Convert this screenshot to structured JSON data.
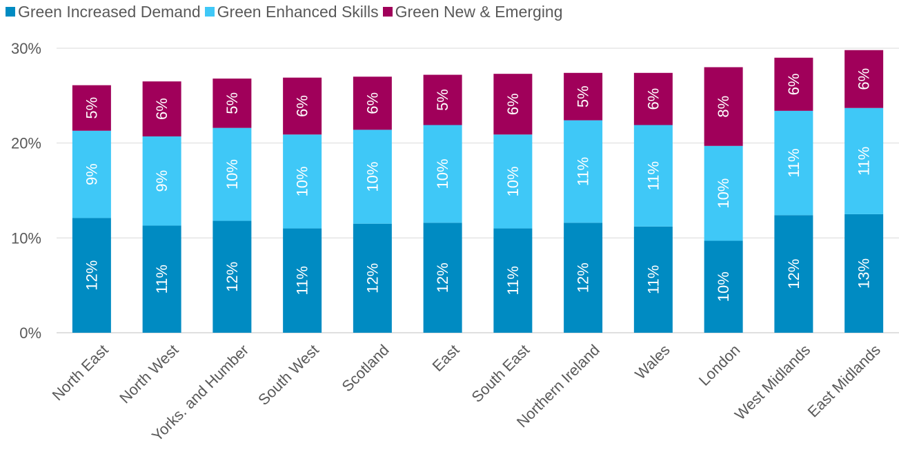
{
  "chart_data": {
    "type": "bar",
    "stacked": true,
    "orientation": "vertical",
    "categories": [
      "North East",
      "North West",
      "Yorks. and Humber",
      "South West",
      "Scotland",
      "East",
      "South East",
      "Northern Ireland",
      "Wales",
      "London",
      "West Midlands",
      "East Midlands"
    ],
    "series": [
      {
        "name": "Green Increased Demand",
        "color": "#008bc2",
        "values": [
          12.1,
          11.3,
          11.8,
          11.0,
          11.5,
          11.6,
          11.0,
          11.6,
          11.2,
          9.7,
          12.4,
          12.5
        ],
        "labels": [
          "12%",
          "11%",
          "12%",
          "11%",
          "12%",
          "12%",
          "11%",
          "12%",
          "11%",
          "10%",
          "12%",
          "13%"
        ]
      },
      {
        "name": "Green Enhanced Skills",
        "color": "#3fc8f7",
        "values": [
          9.2,
          9.4,
          9.8,
          9.9,
          9.9,
          10.3,
          9.9,
          10.8,
          10.7,
          10.0,
          11.0,
          11.2
        ],
        "labels": [
          "9%",
          "9%",
          "10%",
          "10%",
          "10%",
          "10%",
          "10%",
          "11%",
          "11%",
          "10%",
          "11%",
          "11%"
        ]
      },
      {
        "name": "Green New & Emerging",
        "color": "#a0005a",
        "values": [
          4.8,
          5.8,
          5.2,
          6.0,
          5.6,
          5.3,
          6.4,
          5.0,
          5.5,
          8.3,
          5.6,
          6.1
        ],
        "labels": [
          "5%",
          "6%",
          "5%",
          "6%",
          "6%",
          "5%",
          "6%",
          "5%",
          "6%",
          "8%",
          "6%",
          "6%"
        ]
      }
    ],
    "title": "",
    "xlabel": "",
    "ylabel": "",
    "ylim": [
      0,
      30
    ],
    "yticks": [
      0,
      10,
      20,
      30
    ],
    "ytick_labels": [
      "0%",
      "10%",
      "20%",
      "30%"
    ],
    "grid": "horizontal",
    "legend_position": "top-left"
  }
}
